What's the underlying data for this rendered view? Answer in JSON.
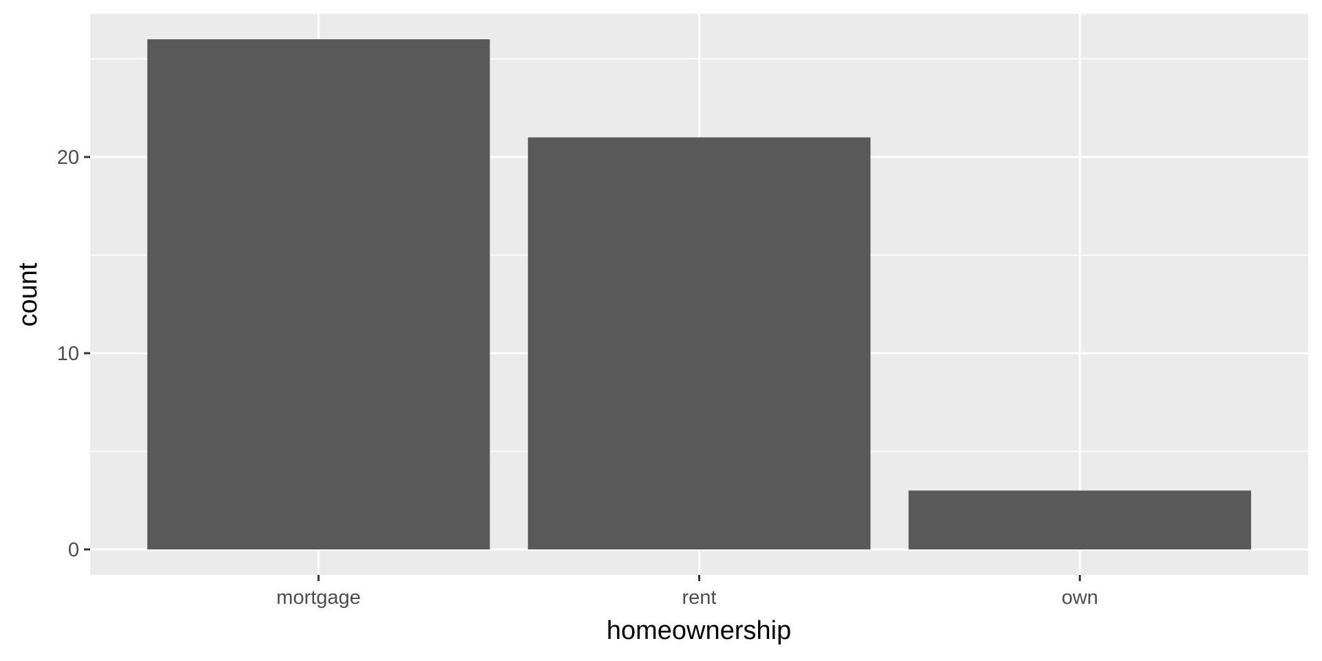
{
  "chart_data": {
    "type": "bar",
    "categories": [
      "mortgage",
      "rent",
      "own"
    ],
    "values": [
      26,
      21,
      3
    ],
    "title": "",
    "xlabel": "homeownership",
    "ylabel": "count",
    "ylim": [
      -1.3,
      27.3
    ],
    "yticks": [
      0,
      10,
      20
    ],
    "grid": true,
    "colors": {
      "panel": "#ebebeb",
      "grid": "#ffffff",
      "bar": "#595959",
      "tick": "#333333",
      "tick_text": "#4d4d4d"
    }
  }
}
